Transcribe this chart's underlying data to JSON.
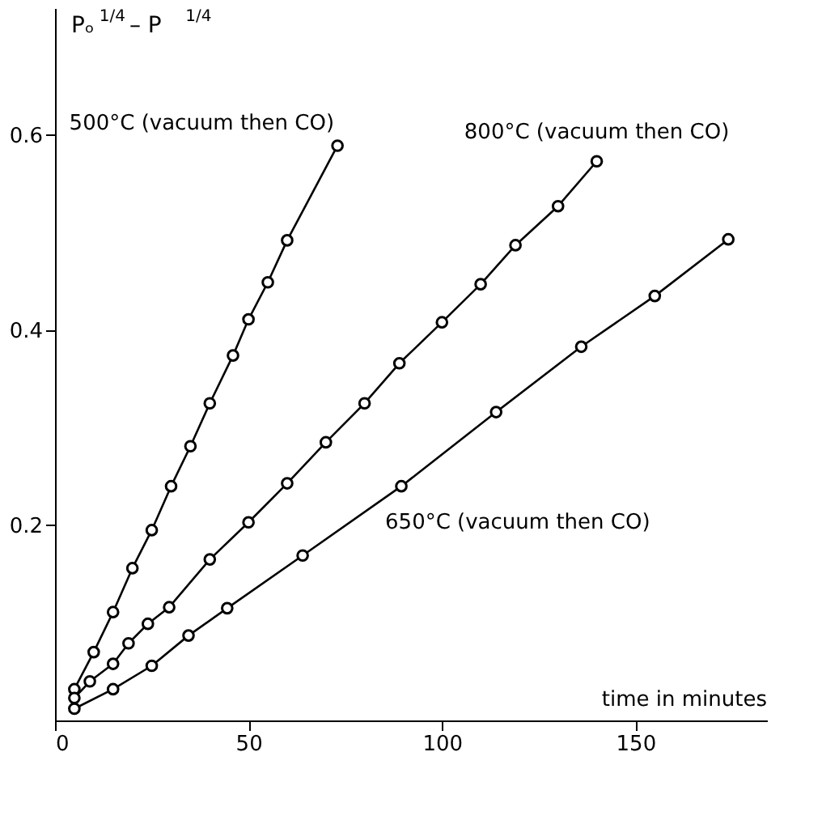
{
  "chart_data": {
    "type": "line",
    "xlabel": "time in minutes",
    "ylabel": "Pₒ$^{1/4}$ – P$^{1/4}$",
    "xlim": [
      0,
      184
    ],
    "ylim": [
      0,
      0.73
    ],
    "xticks": [
      0,
      50,
      100,
      150
    ],
    "yticks": [
      0.2,
      0.4,
      0.6
    ],
    "marker": "circle",
    "line_style": "solid",
    "grid": false,
    "series": [
      {
        "name": "500°C (vacuum then CO)",
        "color": "#000000",
        "x": [
          5,
          10,
          15,
          20,
          25,
          30,
          35,
          40,
          46,
          50,
          55,
          60,
          73
        ],
        "values": [
          0.032,
          0.07,
          0.111,
          0.156,
          0.195,
          0.24,
          0.281,
          0.325,
          0.374,
          0.411,
          0.449,
          0.492,
          0.589
        ]
      },
      {
        "name": "800°C (vacuum then CO)",
        "color": "#000000",
        "x": [
          5,
          9,
          15,
          19,
          24,
          29.5,
          40,
          50,
          60,
          70,
          80,
          89,
          100,
          110,
          119,
          130,
          140
        ],
        "values": [
          0.023,
          0.04,
          0.058,
          0.079,
          0.099,
          0.116,
          0.165,
          0.203,
          0.243,
          0.285,
          0.325,
          0.366,
          0.408,
          0.447,
          0.487,
          0.527,
          0.573
        ]
      },
      {
        "name": "650°C (vacuum then CO)",
        "color": "#000000",
        "x": [
          5,
          15,
          25,
          34.5,
          44.5,
          64,
          89.5,
          114,
          136,
          155,
          174
        ],
        "values": [
          0.012,
          0.032,
          0.056,
          0.087,
          0.115,
          0.169,
          0.24,
          0.316,
          0.383,
          0.435,
          0.493
        ]
      }
    ]
  }
}
